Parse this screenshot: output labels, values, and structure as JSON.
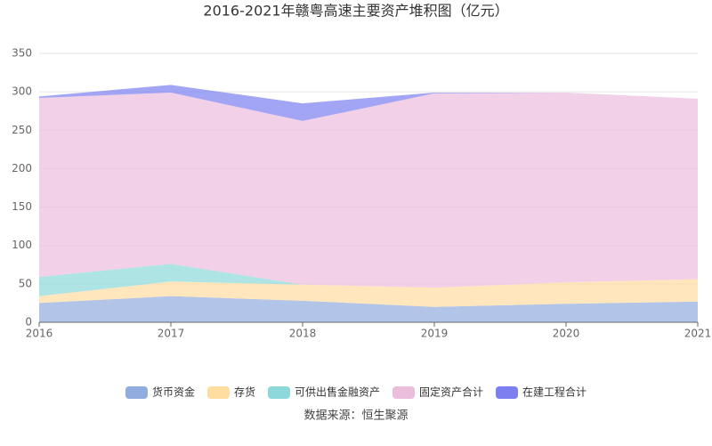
{
  "chart_data": {
    "type": "stacked_area",
    "title": "2016-2021年赣粤高速主要资产堆积图（亿元）",
    "source": "数据来源：恒生聚源",
    "categories": [
      "2016",
      "2017",
      "2018",
      "2019",
      "2020",
      "2021"
    ],
    "series": [
      {
        "name": "货币资金",
        "color": "#91acde",
        "values": [
          25,
          34,
          28,
          20,
          24,
          27
        ]
      },
      {
        "name": "存货",
        "color": "#ffdca0",
        "values": [
          9,
          19,
          21,
          25,
          28,
          29
        ]
      },
      {
        "name": "可供出售金融资产",
        "color": "#8dd9d9",
        "values": [
          25,
          23,
          0,
          0,
          0,
          0
        ]
      },
      {
        "name": "固定资产合计",
        "color": "#ecbede",
        "values": [
          233,
          223,
          213,
          253,
          247,
          235
        ]
      },
      {
        "name": "在建工程合计",
        "color": "#7b7ff0",
        "values": [
          2,
          10,
          23,
          1,
          0,
          0
        ]
      }
    ],
    "ylim": [
      0,
      350
    ],
    "yticks": [
      0,
      50,
      100,
      150,
      200,
      250,
      300,
      350
    ],
    "grid": true
  }
}
